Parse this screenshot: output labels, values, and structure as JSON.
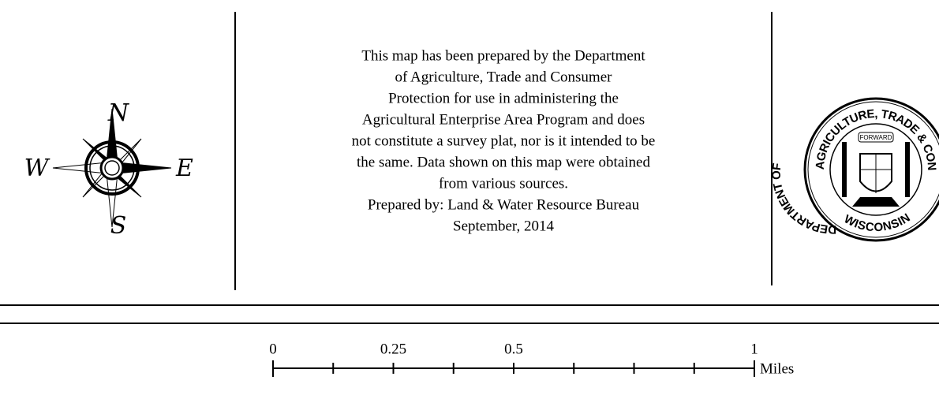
{
  "compass": {
    "north": "N",
    "west": "W",
    "east": "E",
    "south": "S"
  },
  "notice": {
    "lines": [
      "This map has been prepared by the Department",
      "of Agriculture, Trade and Consumer",
      "Protection for use in administering the",
      "Agricultural Enterprise Area Program and does",
      "not constitute a survey plat, nor is it intended to be",
      "the same.  Data shown on this map were obtained",
      "from various sources.",
      "Prepared by:  Land & Water Resource Bureau",
      "September, 2014"
    ]
  },
  "seal": {
    "top": "AGRICULTURE, TRADE & CONS",
    "left": "DEPARTMENT OF",
    "bottom": "WISCONSIN",
    "motto": "FORWARD"
  },
  "scale_bar": {
    "range": [
      0,
      1
    ],
    "ticks": [
      0,
      0.125,
      0.25,
      0.375,
      0.5,
      0.625,
      0.75,
      0.875,
      1
    ],
    "labeled_ticks": [
      0,
      0.25,
      0.5,
      1
    ],
    "unit": "Miles"
  }
}
